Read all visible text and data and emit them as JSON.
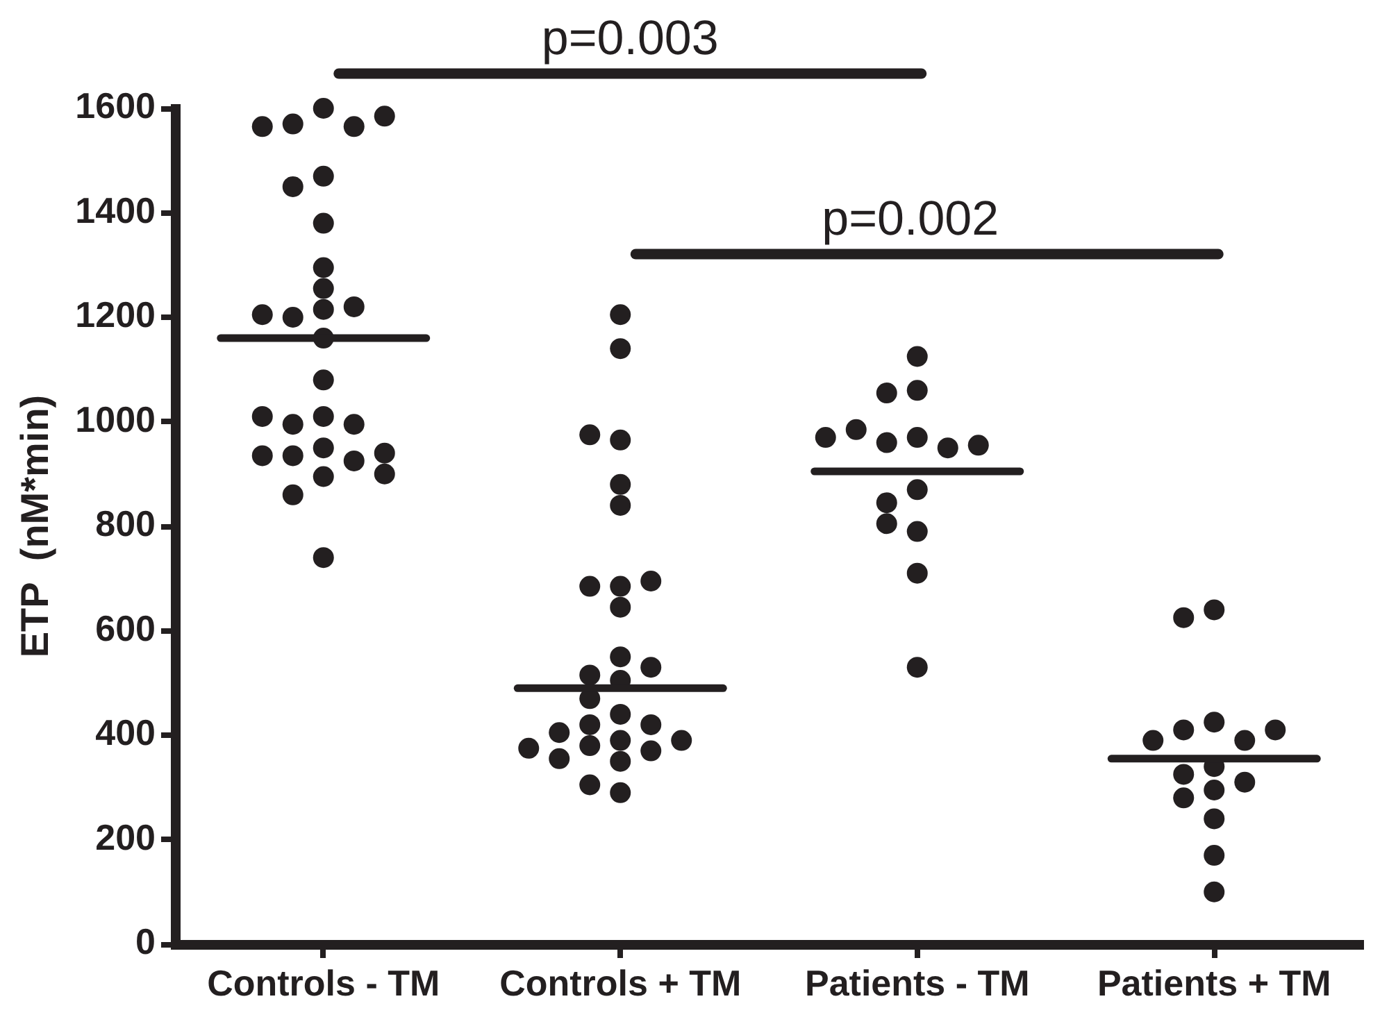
{
  "chart_data": {
    "type": "scatter",
    "ylabel": "ETP  (nM*min)",
    "marker": "circle",
    "categories": [
      "Controls - TM",
      "Controls + TM",
      "Patients - TM",
      "Patients + TM"
    ],
    "ylim": [
      0,
      1600
    ],
    "yticks": [
      0,
      200,
      400,
      600,
      800,
      1000,
      1200,
      1400,
      1600
    ],
    "series": [
      {
        "color": "#231f20",
        "x": [
          "Controls - TM",
          "Controls - TM",
          "Controls - TM",
          "Controls - TM",
          "Controls - TM",
          "Controls - TM",
          "Controls - TM",
          "Controls - TM",
          "Controls - TM",
          "Controls - TM",
          "Controls - TM",
          "Controls - TM",
          "Controls - TM",
          "Controls - TM",
          "Controls - TM",
          "Controls - TM",
          "Controls - TM",
          "Controls - TM",
          "Controls - TM",
          "Controls - TM",
          "Controls - TM",
          "Controls - TM",
          "Controls - TM",
          "Controls - TM",
          "Controls - TM",
          "Controls - TM",
          "Controls - TM",
          "Controls - TM",
          "Controls - TM",
          "Controls + TM",
          "Controls + TM",
          "Controls + TM",
          "Controls + TM",
          "Controls + TM",
          "Controls + TM",
          "Controls + TM",
          "Controls + TM",
          "Controls + TM",
          "Controls + TM",
          "Controls + TM",
          "Controls + TM",
          "Controls + TM",
          "Controls + TM",
          "Controls + TM",
          "Controls + TM",
          "Controls + TM",
          "Controls + TM",
          "Controls + TM",
          "Controls + TM",
          "Controls + TM",
          "Controls + TM",
          "Controls + TM",
          "Controls + TM",
          "Controls + TM",
          "Controls + TM",
          "Controls + TM",
          "Controls + TM",
          "Patients - TM",
          "Patients - TM",
          "Patients - TM",
          "Patients - TM",
          "Patients - TM",
          "Patients - TM",
          "Patients - TM",
          "Patients - TM",
          "Patients - TM",
          "Patients - TM",
          "Patients - TM",
          "Patients - TM",
          "Patients - TM",
          "Patients - TM",
          "Patients - TM",
          "Patients + TM",
          "Patients + TM",
          "Patients + TM",
          "Patients + TM",
          "Patients + TM",
          "Patients + TM",
          "Patients + TM",
          "Patients + TM",
          "Patients + TM",
          "Patients + TM",
          "Patients + TM",
          "Patients + TM",
          "Patients + TM",
          "Patients + TM",
          "Patients + TM"
        ],
        "values": [
          1600,
          1570,
          1565,
          1565,
          1585,
          1470,
          1450,
          1380,
          1295,
          1255,
          1215,
          1200,
          1220,
          1205,
          1160,
          1080,
          1010,
          995,
          995,
          1010,
          950,
          935,
          925,
          935,
          940,
          895,
          900,
          860,
          740,
          1205,
          1140,
          965,
          975,
          880,
          840,
          685,
          645,
          685,
          695,
          550,
          515,
          505,
          530,
          470,
          440,
          420,
          420,
          390,
          405,
          390,
          380,
          370,
          350,
          355,
          375,
          290,
          305,
          1125,
          1060,
          1055,
          970,
          960,
          950,
          985,
          955,
          970,
          870,
          845,
          790,
          805,
          710,
          530,
          640,
          625,
          425,
          410,
          390,
          390,
          410,
          340,
          325,
          295,
          310,
          280,
          240,
          170,
          100
        ]
      }
    ],
    "ref_lines": [
      {
        "axis": "y",
        "value": 1160,
        "color": "#231f20"
      },
      {
        "axis": "y",
        "value": 490,
        "color": "#231f20"
      },
      {
        "axis": "y",
        "value": 905,
        "color": "#231f20"
      },
      {
        "axis": "y",
        "value": 355,
        "color": "#231f20"
      }
    ],
    "annotations": [
      "p=0.003",
      "p=0.002"
    ]
  }
}
